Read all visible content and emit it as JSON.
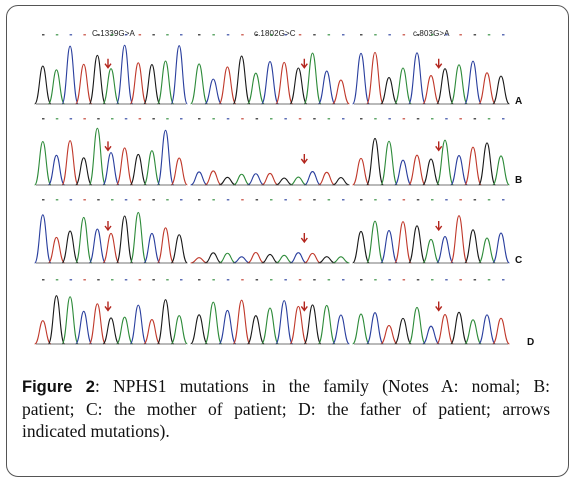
{
  "figure": {
    "mutation_labels": [
      "C.1339G>A",
      "c.1802G>C",
      "c.803G>A"
    ],
    "row_labels": [
      "A",
      "B",
      "C",
      "D"
    ],
    "arrow_color": "#b3261e",
    "trace_colors": [
      "#1a1a1a",
      "#2e8b3a",
      "#2a3f9e",
      "#c0392b"
    ]
  },
  "caption": {
    "label": "Figure 2",
    "line1": ": NPHS1 mutations in the family (Notes A: nomal; B:",
    "line2": "patient; C: the mother of patient; D: the father of patient; arrows",
    "line3": "indicated mutations)."
  }
}
